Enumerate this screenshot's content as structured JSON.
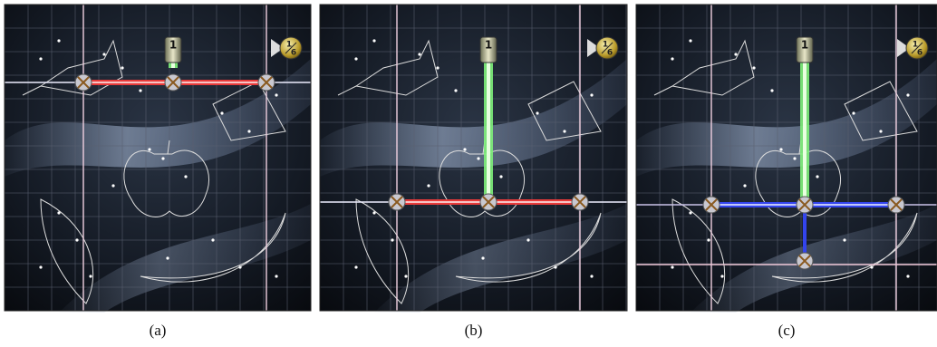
{
  "panels": [
    {
      "caption": "(a)",
      "emitter_label": "1",
      "counter": {
        "numerator": "1",
        "denominator": "6"
      }
    },
    {
      "caption": "(b)",
      "emitter_label": "1",
      "counter": {
        "numerator": "1",
        "denominator": "6"
      }
    },
    {
      "caption": "(c)",
      "emitter_label": "1",
      "counter": {
        "numerator": "1",
        "denominator": "6"
      }
    }
  ]
}
